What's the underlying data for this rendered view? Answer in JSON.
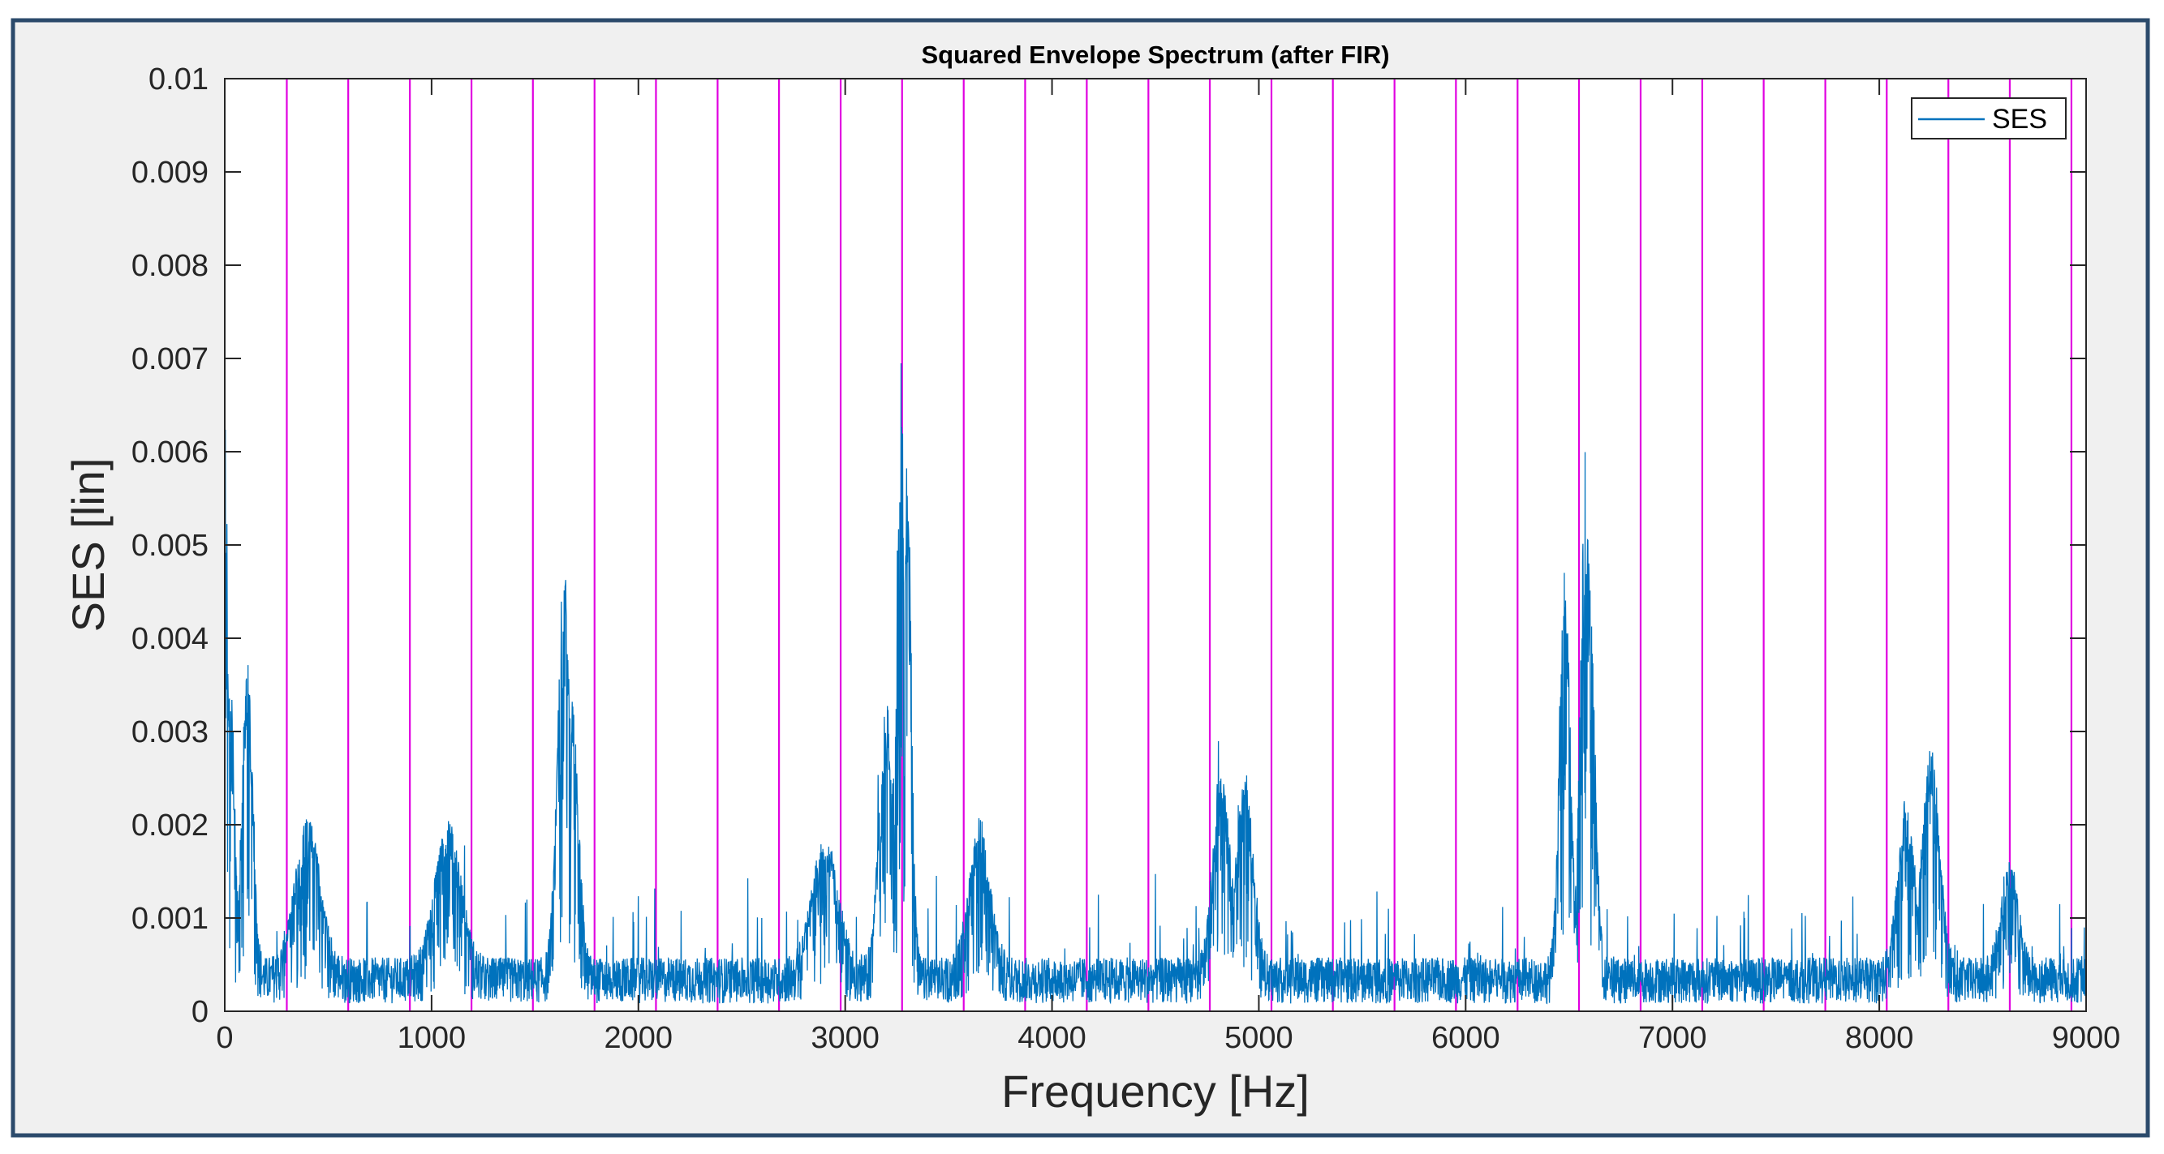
{
  "chart_data": {
    "type": "line",
    "title": "Squared Envelope Spectrum (after FIR)",
    "xlabel": "Frequency [Hz]",
    "ylabel": "SES [lin]",
    "xlim": [
      0,
      9000
    ],
    "ylim": [
      0,
      0.01
    ],
    "x_ticks": [
      "0",
      "1000",
      "2000",
      "3000",
      "4000",
      "5000",
      "6000",
      "7000",
      "8000",
      "9000"
    ],
    "y_ticks": [
      "0",
      "0.001",
      "0.002",
      "0.003",
      "0.004",
      "0.005",
      "0.006",
      "0.007",
      "0.008",
      "0.009",
      "0.01"
    ],
    "legend": {
      "position": "top-right",
      "entries": [
        "SES"
      ]
    },
    "grid": false,
    "colors": {
      "series": "#0072BD",
      "harmonic_markers": "#E000E0",
      "frame_border": "#2B4A6B",
      "figure_bg": "#F0F0F0"
    },
    "series": [
      {
        "name": "SES",
        "baseline": 0.00055,
        "noise": 0.0006,
        "peaks": [
          {
            "x": 0,
            "y": 0.0067,
            "width": 15
          },
          {
            "x": 20,
            "y": 0.0038,
            "width": 25
          },
          {
            "x": 110,
            "y": 0.0038,
            "width": 25
          },
          {
            "x": 400,
            "y": 0.0021,
            "width": 60
          },
          {
            "x": 1080,
            "y": 0.0021,
            "width": 60
          },
          {
            "x": 1640,
            "y": 0.0048,
            "width": 30
          },
          {
            "x": 1680,
            "y": 0.0033,
            "width": 30
          },
          {
            "x": 2900,
            "y": 0.0019,
            "width": 60
          },
          {
            "x": 3200,
            "y": 0.0033,
            "width": 35
          },
          {
            "x": 3270,
            "y": 0.007,
            "width": 20
          },
          {
            "x": 3300,
            "y": 0.006,
            "width": 20
          },
          {
            "x": 3650,
            "y": 0.002,
            "width": 50
          },
          {
            "x": 4820,
            "y": 0.0026,
            "width": 40
          },
          {
            "x": 4930,
            "y": 0.0025,
            "width": 40
          },
          {
            "x": 6480,
            "y": 0.0049,
            "width": 25
          },
          {
            "x": 6580,
            "y": 0.0059,
            "width": 25
          },
          {
            "x": 6600,
            "y": 0.0045,
            "width": 25
          },
          {
            "x": 8130,
            "y": 0.0022,
            "width": 40
          },
          {
            "x": 8250,
            "y": 0.0029,
            "width": 40
          },
          {
            "x": 8630,
            "y": 0.0016,
            "width": 40
          }
        ]
      }
    ],
    "harmonic_markers_x": [
      300,
      597,
      895,
      1193,
      1490,
      1788,
      2085,
      2383,
      2680,
      2978,
      3275,
      3573,
      3870,
      4168,
      4466,
      4763,
      5061,
      5358,
      5656,
      5953,
      6251,
      6548,
      6846,
      7144,
      7441,
      7739,
      8036,
      8334,
      8631,
      8929
    ]
  }
}
